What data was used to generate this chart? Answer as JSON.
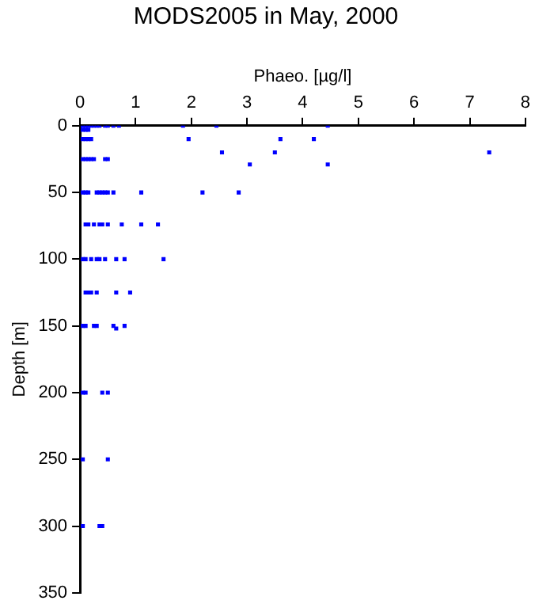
{
  "chart_data": {
    "type": "scatter",
    "title": "MODS2005 in May, 2000",
    "xlabel": "Phaeo. [µg/l]",
    "ylabel": "Depth [m]",
    "xlim": [
      0,
      8
    ],
    "xticks": [
      0,
      1,
      2,
      3,
      4,
      5,
      6,
      7,
      8
    ],
    "ylim": [
      350,
      0
    ],
    "yticks": [
      0,
      50,
      100,
      150,
      200,
      250,
      300,
      350
    ],
    "grid": false,
    "legend": false,
    "marker": "square",
    "series": [
      {
        "color": "#0000ff",
        "x": [
          0.05,
          0.1,
          0.15,
          0.2,
          0.25,
          0.3,
          0.35,
          0.45,
          0.5,
          0.6,
          0.7,
          1.85,
          2.45,
          4.45,
          0.05,
          0.1,
          0.15,
          0.05,
          0.1,
          0.15,
          0.2,
          1.95,
          3.6,
          4.2,
          2.55,
          3.5,
          7.35,
          0.05,
          0.1,
          0.15,
          0.2,
          0.25,
          0.45,
          0.5,
          3.05,
          4.45,
          0.05,
          0.1,
          0.15,
          0.3,
          0.35,
          0.4,
          0.45,
          0.5,
          0.6,
          1.1,
          2.2,
          2.85,
          0.1,
          0.15,
          0.25,
          0.35,
          0.4,
          0.5,
          0.75,
          1.1,
          1.4,
          0.05,
          0.1,
          0.2,
          0.3,
          0.35,
          0.45,
          0.65,
          0.8,
          1.5,
          0.1,
          0.15,
          0.2,
          0.3,
          0.65,
          0.9,
          0.05,
          0.1,
          0.25,
          0.3,
          0.6,
          0.65,
          0.8,
          0.05,
          0.1,
          0.4,
          0.5,
          0.05,
          0.5,
          0.05,
          0.35,
          0.4
        ],
        "values": [
          0,
          0,
          0,
          0,
          0,
          0,
          0,
          0,
          0,
          0,
          0,
          0,
          0,
          0,
          3,
          3,
          3,
          10,
          10,
          10,
          10,
          10,
          10,
          10,
          20,
          20,
          20,
          25,
          25,
          25,
          25,
          25,
          25,
          25,
          29,
          29,
          50,
          50,
          50,
          50,
          50,
          50,
          50,
          50,
          50,
          50,
          50,
          50,
          74,
          74,
          74,
          74,
          74,
          74,
          74,
          74,
          74,
          100,
          100,
          100,
          100,
          100,
          100,
          100,
          100,
          100,
          125,
          125,
          125,
          125,
          125,
          125,
          150,
          150,
          150,
          150,
          150,
          152,
          150,
          200,
          200,
          200,
          200,
          250,
          250,
          300,
          300,
          300
        ]
      }
    ]
  }
}
